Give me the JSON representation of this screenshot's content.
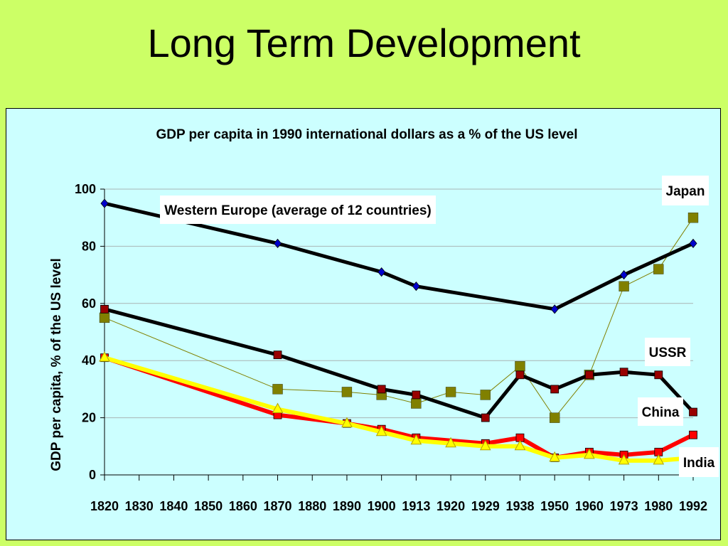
{
  "slide": {
    "title": "Long Term Development"
  },
  "chart_data": {
    "type": "line",
    "title": "GDP per capita in 1990 international dollars as a % of the US level",
    "ylabel": "GDP per capita, % of the US level",
    "xlabel": "",
    "ylim": [
      0,
      100
    ],
    "yticks": [
      0,
      20,
      40,
      60,
      80,
      100
    ],
    "categories": [
      "1820",
      "1830",
      "1840",
      "1850",
      "1860",
      "1870",
      "1880",
      "1890",
      "1900",
      "1913",
      "1920",
      "1929",
      "1938",
      "1950",
      "1960",
      "1973",
      "1980",
      "1992"
    ],
    "grid": "horizontal",
    "series": [
      {
        "name": "Western Europe (average of 12 countries)",
        "color": "#000000",
        "marker_color": "#0000cc",
        "marker": "diamond",
        "points": [
          [
            "1820",
            95
          ],
          [
            "1870",
            81
          ],
          [
            "1900",
            71
          ],
          [
            "1913",
            66
          ],
          [
            "1950",
            58
          ],
          [
            "1973",
            70
          ],
          [
            "1992",
            81
          ]
        ]
      },
      {
        "name": "Japan",
        "color": "#808000",
        "marker_color": "#808000",
        "marker": "square",
        "points": [
          [
            "1820",
            55
          ],
          [
            "1870",
            30
          ],
          [
            "1890",
            29
          ],
          [
            "1900",
            28
          ],
          [
            "1913",
            25
          ],
          [
            "1920",
            29
          ],
          [
            "1929",
            28
          ],
          [
            "1938",
            38
          ],
          [
            "1950",
            20
          ],
          [
            "1960",
            35
          ],
          [
            "1973",
            66
          ],
          [
            "1980",
            72
          ],
          [
            "1992",
            90
          ]
        ]
      },
      {
        "name": "USSR",
        "color": "#000000",
        "marker_color": "#990000",
        "marker": "square",
        "points": [
          [
            "1820",
            58
          ],
          [
            "1870",
            42
          ],
          [
            "1900",
            30
          ],
          [
            "1913",
            28
          ],
          [
            "1929",
            20
          ],
          [
            "1938",
            35
          ],
          [
            "1950",
            30
          ],
          [
            "1960",
            35
          ],
          [
            "1973",
            36
          ],
          [
            "1980",
            35
          ],
          [
            "1992",
            22
          ]
        ]
      },
      {
        "name": "China",
        "color": "#ff0000",
        "marker_color": "#ff0000",
        "marker": "square",
        "points": [
          [
            "1820",
            41
          ],
          [
            "1870",
            21
          ],
          [
            "1890",
            18
          ],
          [
            "1900",
            16
          ],
          [
            "1913",
            13
          ],
          [
            "1929",
            11
          ],
          [
            "1938",
            13
          ],
          [
            "1950",
            6
          ],
          [
            "1960",
            8
          ],
          [
            "1973",
            7
          ],
          [
            "1980",
            8
          ],
          [
            "1992",
            14
          ]
        ]
      },
      {
        "name": "India",
        "color": "#ffff00",
        "marker_color": "#ffff00",
        "marker": "triangle",
        "points": [
          [
            "1820",
            41
          ],
          [
            "1870",
            23
          ],
          [
            "1890",
            18
          ],
          [
            "1900",
            15
          ],
          [
            "1913",
            12
          ],
          [
            "1920",
            11
          ],
          [
            "1929",
            10
          ],
          [
            "1938",
            10
          ],
          [
            "1950",
            6
          ],
          [
            "1960",
            7
          ],
          [
            "1973",
            5
          ],
          [
            "1980",
            5
          ],
          [
            "1992",
            6
          ]
        ]
      }
    ]
  }
}
